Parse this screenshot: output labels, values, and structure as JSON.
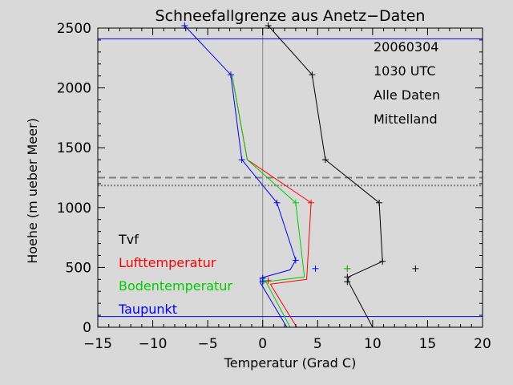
{
  "chart_data": {
    "type": "line",
    "title": "Schneefallgrenze aus Anetz−Daten",
    "xlabel": "Temperatur (Grad C)",
    "ylabel": "Hoehe (m ueber Meer)",
    "xlim": [
      -15,
      20
    ],
    "ylim": [
      0,
      2500
    ],
    "xticks": [
      -15,
      -10,
      -5,
      0,
      5,
      10,
      15,
      20
    ],
    "xtick_labels": [
      "−15",
      "−10",
      "−5",
      "0",
      "5",
      "10",
      "15",
      "20"
    ],
    "yticks": [
      0,
      500,
      1000,
      1500,
      2000,
      2500
    ],
    "ytick_labels": [
      "0",
      "500",
      "1000",
      "1500",
      "2000",
      "2500"
    ],
    "grid": false,
    "info_lines": [
      "20060304",
      "1030 UTC",
      "Alle Daten",
      "Mittelland"
    ],
    "legend_position": "bottom-left",
    "series": [
      {
        "name": "Tvf",
        "color": "#000000",
        "x": [
          10.0,
          7.8,
          7.8,
          10.9,
          10.6,
          5.7,
          4.5,
          0.5
        ],
        "y": [
          0,
          380,
          420,
          550,
          1040,
          1400,
          2110,
          2520
        ],
        "markers": [
          {
            "x": 7.7,
            "y": 380
          },
          {
            "x": 7.7,
            "y": 420
          },
          {
            "x": 10.9,
            "y": 550
          },
          {
            "x": 10.6,
            "y": 1040
          },
          {
            "x": 5.7,
            "y": 1400
          },
          {
            "x": 4.5,
            "y": 2110
          },
          {
            "x": 0.5,
            "y": 2520
          }
        ],
        "extra_points": [
          {
            "x": 13.9,
            "y": 490
          }
        ]
      },
      {
        "name": "Lufttemperatur",
        "color": "#ff0000",
        "x": [
          3.1,
          0.7,
          4.0,
          4.4,
          -1.4,
          -2.8
        ],
        "y": [
          0,
          360,
          400,
          1040,
          1400,
          2110
        ],
        "markers": [
          {
            "x": 0.5,
            "y": 390
          },
          {
            "x": 4.4,
            "y": 1040
          }
        ],
        "extra_points": [
          {
            "x": 7.7,
            "y": 490
          }
        ]
      },
      {
        "name": "Bodentemperatur",
        "color": "#00cc00",
        "x": [
          2.5,
          0.3,
          3.8,
          3.0,
          -1.4,
          -2.8
        ],
        "y": [
          0,
          380,
          420,
          1040,
          1400,
          2110
        ],
        "markers": [
          {
            "x": 0.1,
            "y": 390
          },
          {
            "x": 3.0,
            "y": 1040
          }
        ],
        "extra_points": [
          {
            "x": 7.7,
            "y": 490
          }
        ]
      },
      {
        "name": "Taupunkt",
        "color": "#0000ff",
        "x": [
          2.2,
          -0.2,
          -0.2,
          2.5,
          3.0,
          1.3,
          -1.9,
          -2.9,
          -7.1
        ],
        "y": [
          0,
          370,
          410,
          480,
          560,
          1040,
          1400,
          2110,
          2520
        ],
        "markers": [
          {
            "x": 0.0,
            "y": 380
          },
          {
            "x": 0.0,
            "y": 410
          },
          {
            "x": 3.0,
            "y": 560
          },
          {
            "x": 1.3,
            "y": 1040
          },
          {
            "x": -1.9,
            "y": 1400
          },
          {
            "x": -2.9,
            "y": 2110
          },
          {
            "x": -7.1,
            "y": 2520
          }
        ],
        "extra_points": [
          {
            "x": 4.8,
            "y": 490
          }
        ]
      }
    ],
    "reference_lines": [
      {
        "name": "zero-line",
        "orientation": "vertical",
        "x": 0,
        "color": "#888888",
        "style": "solid"
      },
      {
        "name": "upper-limit-line",
        "orientation": "horizontal",
        "y": 2410,
        "color": "#0000ff",
        "style": "solid"
      },
      {
        "name": "lower-limit-line",
        "orientation": "horizontal",
        "y": 90,
        "color": "#0000ff",
        "style": "solid"
      },
      {
        "name": "snow-line-dashed",
        "orientation": "horizontal",
        "y": 1250,
        "color": "#808080",
        "style": "dashed"
      },
      {
        "name": "snow-line-dotted",
        "orientation": "horizontal",
        "y": 1185,
        "color": "#808080",
        "style": "dotted"
      }
    ]
  }
}
